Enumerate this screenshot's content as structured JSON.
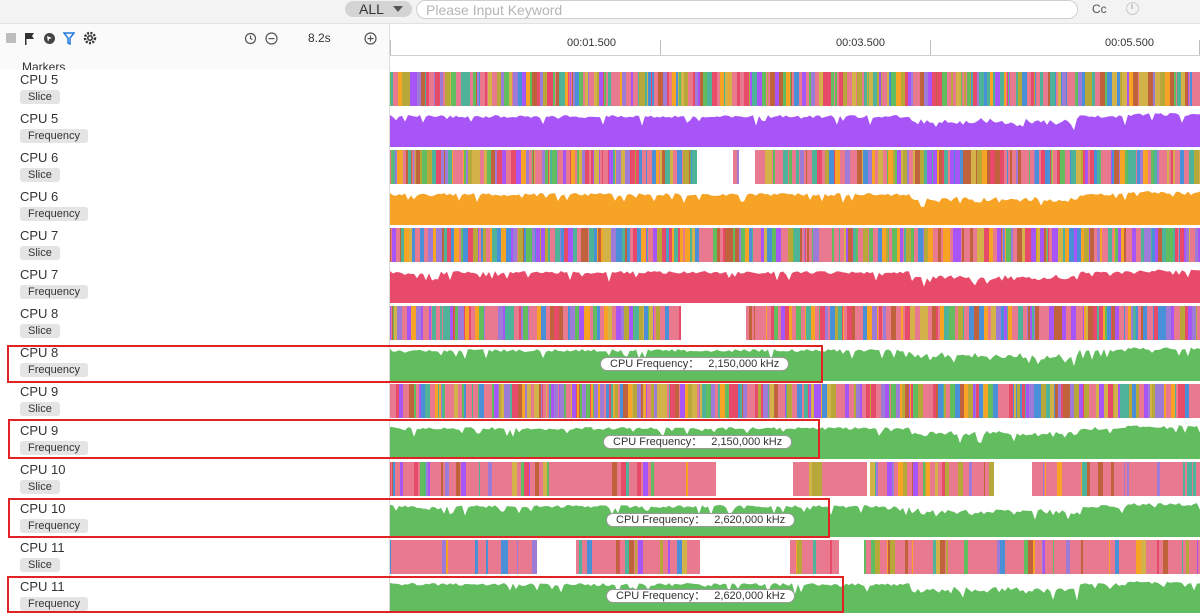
{
  "search": {
    "scope": "ALL",
    "placeholder": "Please Input Keyword",
    "case_toggle": "Cc"
  },
  "toolbar": {
    "duration": "8.2s",
    "markers_label": "Markers"
  },
  "ruler": {
    "ticks": [
      "00:01.500",
      "00:03.500",
      "00:05.500"
    ]
  },
  "colors": {
    "cpu5": "#a855f7",
    "cpu6": "#f7a325",
    "cpu7": "#e84a6a",
    "cpu8": "#62bd5f",
    "cpu9": "#62bd5f",
    "cpu10": "#62bd5f",
    "cpu11": "#62bd5f"
  },
  "rows": [
    {
      "cpu": "CPU 5",
      "type": "Slice"
    },
    {
      "cpu": "CPU 5",
      "type": "Frequency"
    },
    {
      "cpu": "CPU 6",
      "type": "Slice"
    },
    {
      "cpu": "CPU 6",
      "type": "Frequency"
    },
    {
      "cpu": "CPU 7",
      "type": "Slice"
    },
    {
      "cpu": "CPU 7",
      "type": "Frequency"
    },
    {
      "cpu": "CPU 8",
      "type": "Slice"
    },
    {
      "cpu": "CPU 8",
      "type": "Frequency",
      "tooltip_label": "CPU Frequency：",
      "tooltip_value": "2,150,000 kHz"
    },
    {
      "cpu": "CPU 9",
      "type": "Slice"
    },
    {
      "cpu": "CPU 9",
      "type": "Frequency",
      "tooltip_label": "CPU Frequency：",
      "tooltip_value": "2,150,000 kHz"
    },
    {
      "cpu": "CPU 10",
      "type": "Slice"
    },
    {
      "cpu": "CPU 10",
      "type": "Frequency",
      "tooltip_label": "CPU Frequency：",
      "tooltip_value": "2,620,000 kHz"
    },
    {
      "cpu": "CPU 11",
      "type": "Slice"
    },
    {
      "cpu": "CPU 11",
      "type": "Frequency",
      "tooltip_label": "CPU Frequency：",
      "tooltip_value": "2,620,000 kHz"
    }
  ]
}
